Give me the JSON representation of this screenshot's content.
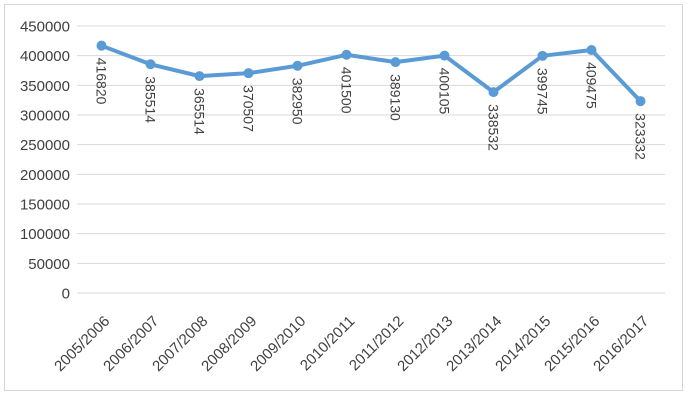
{
  "chart_data": {
    "type": "line",
    "title": "",
    "xlabel": "",
    "ylabel": "",
    "categories": [
      "2005/2006",
      "2006/2007",
      "2007/2008",
      "2008/2009",
      "2009/2010",
      "2010/2011",
      "2011/2012",
      "2012/2013",
      "2013/2014",
      "2014/2015",
      "2015/2016",
      "2016/2017"
    ],
    "series": [
      {
        "name": "",
        "values": [
          416820,
          385514,
          365514,
          370507,
          382950,
          401500,
          389130,
          400105,
          338532,
          399745,
          409475,
          323332
        ]
      }
    ],
    "data_labels": [
      "416820",
      "385514",
      "365514",
      "370507",
      "382950",
      "401500",
      "389130",
      "400105",
      "338532",
      "399745",
      "409475",
      "323332"
    ],
    "ylim": [
      0,
      450000
    ],
    "yticks": [
      0,
      50000,
      100000,
      150000,
      200000,
      250000,
      300000,
      350000,
      400000,
      450000
    ],
    "ytick_labels": [
      "0",
      "50000",
      "100000",
      "150000",
      "200000",
      "250000",
      "300000",
      "350000",
      "400000",
      "450000"
    ],
    "grid": "horizontal",
    "legend": "none",
    "marker": "circle",
    "data_label_rotation_deg": 90,
    "x_label_rotation_deg": -45,
    "colors": {
      "line": "#5B9BD5",
      "marker": "#5B9BD5",
      "gridline": "#D9D9D9",
      "border": "#D6D6D6",
      "text": "#404040",
      "background": "#FFFFFF"
    }
  }
}
